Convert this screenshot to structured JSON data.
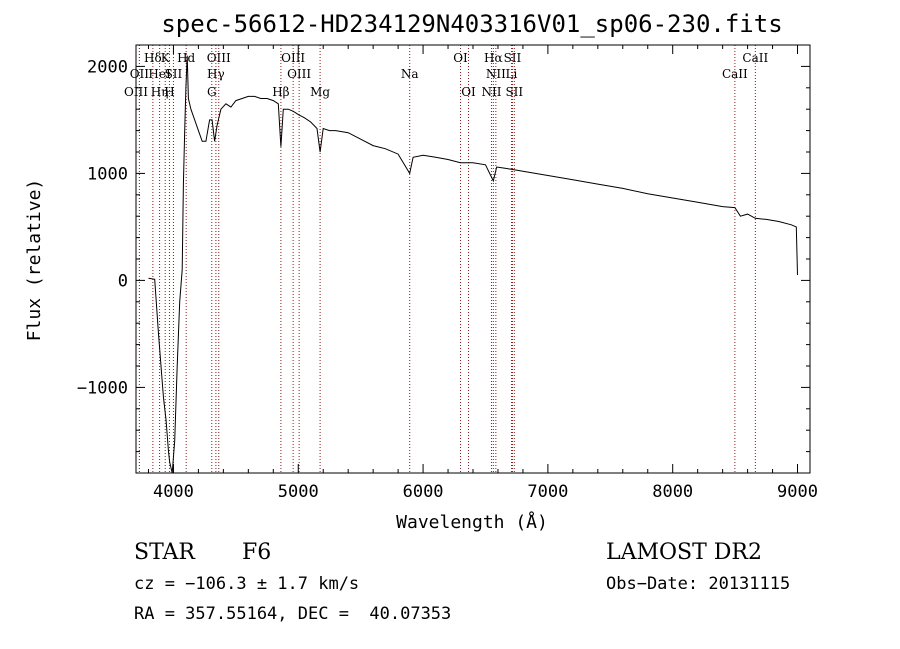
{
  "chart_data": {
    "type": "line",
    "title": "spec-56612-HD234129N403316V01_sp06-230.fits",
    "xlabel": "Wavelength (Å)",
    "ylabel": "Flux (relative)",
    "xlim": [
      3700,
      9100
    ],
    "ylim": [
      -1800,
      2200
    ],
    "x_ticks": [
      4000,
      5000,
      6000,
      7000,
      8000,
      9000
    ],
    "y_ticks": [
      -1000,
      0,
      1000,
      2000
    ],
    "series": [
      {
        "x": [
          3800,
          3850,
          3880,
          3900,
          3920,
          3940,
          3960,
          3970,
          3990,
          4010,
          4030,
          4050,
          4070,
          4080,
          4090,
          4100,
          4110,
          4120,
          4140,
          4170,
          4200,
          4230,
          4260,
          4290,
          4310,
          4330,
          4350,
          4380,
          4420,
          4460,
          4500,
          4550,
          4600,
          4650,
          4700,
          4750,
          4800,
          4840,
          4861,
          4880,
          4920,
          4960,
          5000,
          5050,
          5100,
          5150,
          5175,
          5200,
          5250,
          5300,
          5400,
          5500,
          5600,
          5700,
          5800,
          5893,
          5920,
          6000,
          6100,
          6200,
          6300,
          6400,
          6500,
          6563,
          6590,
          6650,
          6700,
          6800,
          6900,
          7000,
          7200,
          7400,
          7600,
          7800,
          8000,
          8200,
          8400,
          8498,
          8542,
          8600,
          8662,
          8750,
          8850,
          8950,
          8990,
          9000
        ],
        "y": [
          20,
          10,
          -500,
          -800,
          -1100,
          -1300,
          -1600,
          -1700,
          -1800,
          -1500,
          -800,
          -200,
          100,
          900,
          1400,
          1800,
          2100,
          1700,
          1600,
          1500,
          1400,
          1300,
          1300,
          1500,
          1500,
          1300,
          1450,
          1600,
          1650,
          1620,
          1680,
          1700,
          1720,
          1720,
          1700,
          1700,
          1680,
          1650,
          1250,
          1600,
          1600,
          1580,
          1550,
          1520,
          1480,
          1420,
          1200,
          1420,
          1400,
          1400,
          1380,
          1320,
          1260,
          1230,
          1180,
          1000,
          1150,
          1170,
          1150,
          1130,
          1100,
          1100,
          1080,
          930,
          1060,
          1050,
          1040,
          1020,
          1000,
          980,
          940,
          900,
          860,
          810,
          770,
          730,
          690,
          680,
          600,
          620,
          580,
          570,
          550,
          520,
          500,
          50
        ]
      }
    ],
    "spectral_lines": [
      {
        "label": "Hδ",
        "x": 3835,
        "row": 0
      },
      {
        "label": "K",
        "x": 3934,
        "row": 0
      },
      {
        "label": "Hd",
        "x": 4102,
        "row": 0
      },
      {
        "label": "OII",
        "x": 3727,
        "row": 1
      },
      {
        "label": "HeI",
        "x": 3889,
        "row": 1
      },
      {
        "label": "SII",
        "x": 4000,
        "row": 1
      },
      {
        "label": "OIII",
        "x": 3700,
        "row": 2
      },
      {
        "label": "Hη",
        "x": 3889,
        "row": 2
      },
      {
        "label": "H",
        "x": 3968,
        "row": 2
      },
      {
        "label": "OIII",
        "x": 4363,
        "row": 0
      },
      {
        "label": "Hγ",
        "x": 4340,
        "row": 1
      },
      {
        "label": "G",
        "x": 4307,
        "row": 2
      },
      {
        "label": "OIII",
        "x": 4959,
        "row": 0
      },
      {
        "label": "OIII",
        "x": 5007,
        "row": 1
      },
      {
        "label": "Hβ",
        "x": 4861,
        "row": 2
      },
      {
        "label": "Mg",
        "x": 5175,
        "row": 2
      },
      {
        "label": "Na",
        "x": 5893,
        "row": 1
      },
      {
        "label": "OI",
        "x": 6300,
        "row": 0
      },
      {
        "label": "OI",
        "x": 6364,
        "row": 2
      },
      {
        "label": "Hα",
        "x": 6563,
        "row": 0
      },
      {
        "label": "SII",
        "x": 6716,
        "row": 0
      },
      {
        "label": "NII",
        "x": 6583,
        "row": 1
      },
      {
        "label": "Li",
        "x": 6708,
        "row": 1
      },
      {
        "label": "NII",
        "x": 6548,
        "row": 2
      },
      {
        "label": "SII",
        "x": 6731,
        "row": 2
      },
      {
        "label": "CaII",
        "x": 8662,
        "row": 0
      },
      {
        "label": "CaII",
        "x": 8498,
        "row": 1
      }
    ],
    "line_markers_x": [
      3727,
      3835,
      3889,
      3934,
      3968,
      4000,
      4102,
      4307,
      4340,
      4363,
      4861,
      4959,
      5007,
      5175,
      5893,
      6300,
      6364,
      6548,
      6563,
      6583,
      6708,
      6716,
      6731,
      8498,
      8662
    ],
    "grid": false,
    "legend": "none"
  },
  "info": {
    "class": "STAR",
    "subclass": "F6",
    "cz": "cz = −106.3 ± 1.7 km/s",
    "radec": "RA = 357.55164, DEC =  40.07353",
    "survey": "LAMOST DR2",
    "obsdate": "Obs−Date: 20131115"
  },
  "colors": {
    "line": "#000000",
    "marker": "#8b1a1a"
  }
}
